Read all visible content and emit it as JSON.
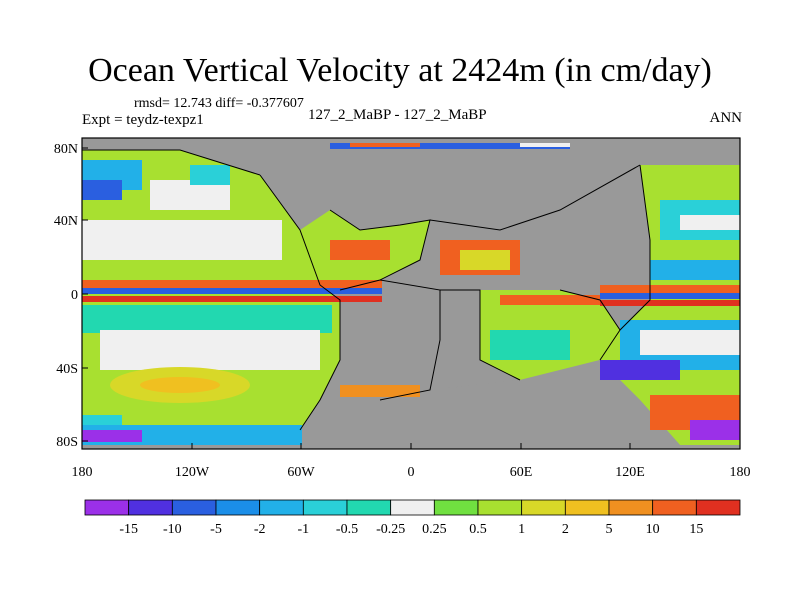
{
  "header": {
    "title": "Ocean Vertical Velocity at 2424m (in cm/day)",
    "stats": "rmsd= 12.743 diff= -0.377607",
    "expt": "Expt = teydz-texpz1",
    "case": "127_2_MaBP - 127_2_MaBP",
    "season": "ANN"
  },
  "map": {
    "lat_labels": [
      "80N",
      "40N",
      "0",
      "40S",
      "80S"
    ],
    "lon_labels": [
      "180",
      "120W",
      "60W",
      "0",
      "60E",
      "120E",
      "180"
    ],
    "land_color": "#999999"
  },
  "colorbar": {
    "labels": [
      "-15",
      "-10",
      "-5",
      "-2",
      "-1",
      "-0.5",
      "-0.25",
      "0.25",
      "0.5",
      "1",
      "2",
      "5",
      "10",
      "15"
    ],
    "colors": [
      "#9b30e8",
      "#5030e0",
      "#2a5fe0",
      "#1b8ee8",
      "#22b0e8",
      "#2ad0d8",
      "#22d8b0",
      "#f0f0f0",
      "#70e040",
      "#a8e030",
      "#d8d828",
      "#f0c020",
      "#f09020",
      "#f06020",
      "#e03020"
    ]
  }
}
